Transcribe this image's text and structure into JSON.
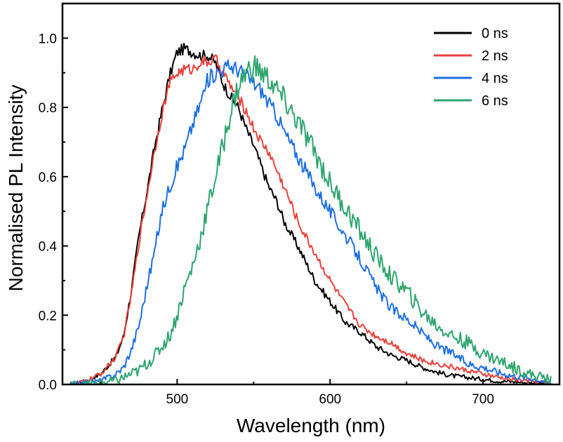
{
  "chart_data": {
    "type": "line",
    "title": "",
    "xlabel": "Wavelength (nm)",
    "ylabel": "Normalised PL Intensity",
    "xlim": [
      425,
      750
    ],
    "ylim": [
      0,
      1.1
    ],
    "xticks": [
      500,
      600,
      700
    ],
    "yticks": [
      0.0,
      0.2,
      0.4,
      0.6,
      0.8,
      1.0
    ],
    "xtick_labels": [
      "500",
      "600",
      "700"
    ],
    "ytick_labels": [
      "0.0",
      "0.2",
      "0.4",
      "0.6",
      "0.8",
      "1.0"
    ],
    "grid": false,
    "legend_position": "top-right",
    "series": [
      {
        "name": "0 ns",
        "color": "#000000",
        "x": [
          430,
          440,
          450,
          460,
          465,
          470,
          475,
          480,
          485,
          490,
          495,
          500,
          505,
          510,
          515,
          520,
          525,
          530,
          535,
          540,
          545,
          550,
          555,
          560,
          565,
          570,
          580,
          590,
          600,
          610,
          620,
          630,
          640,
          650,
          660,
          670,
          680,
          690,
          700,
          710,
          720,
          730,
          740,
          745
        ],
        "y": [
          0.0,
          0.01,
          0.03,
          0.08,
          0.14,
          0.27,
          0.43,
          0.55,
          0.68,
          0.79,
          0.89,
          0.96,
          0.97,
          0.96,
          0.95,
          0.95,
          0.93,
          0.87,
          0.83,
          0.8,
          0.74,
          0.69,
          0.63,
          0.57,
          0.53,
          0.47,
          0.39,
          0.3,
          0.24,
          0.18,
          0.15,
          0.11,
          0.085,
          0.07,
          0.05,
          0.035,
          0.025,
          0.02,
          0.015,
          0.01,
          0.008,
          0.005,
          0.003,
          0.0
        ]
      },
      {
        "name": "2 ns",
        "color": "#e8413c",
        "x": [
          430,
          440,
          450,
          460,
          465,
          470,
          475,
          480,
          485,
          490,
          495,
          500,
          505,
          510,
          515,
          520,
          525,
          530,
          535,
          540,
          545,
          550,
          555,
          560,
          565,
          570,
          580,
          590,
          600,
          610,
          620,
          630,
          640,
          650,
          660,
          670,
          680,
          690,
          700,
          710,
          720,
          730,
          740,
          745
        ],
        "y": [
          0.0,
          0.01,
          0.03,
          0.08,
          0.14,
          0.26,
          0.41,
          0.54,
          0.67,
          0.78,
          0.87,
          0.9,
          0.91,
          0.91,
          0.93,
          0.93,
          0.94,
          0.9,
          0.86,
          0.83,
          0.79,
          0.74,
          0.7,
          0.67,
          0.62,
          0.57,
          0.46,
          0.38,
          0.3,
          0.23,
          0.17,
          0.14,
          0.12,
          0.09,
          0.07,
          0.06,
          0.05,
          0.04,
          0.03,
          0.02,
          0.015,
          0.01,
          0.005,
          0.0
        ]
      },
      {
        "name": "4 ns",
        "color": "#1f6fe0",
        "x": [
          430,
          440,
          450,
          460,
          465,
          470,
          475,
          480,
          485,
          490,
          495,
          500,
          505,
          510,
          515,
          520,
          525,
          530,
          535,
          540,
          545,
          550,
          555,
          560,
          565,
          570,
          580,
          590,
          600,
          610,
          620,
          630,
          640,
          650,
          660,
          670,
          680,
          690,
          700,
          710,
          720,
          730,
          740,
          745
        ],
        "y": [
          0.0,
          0.005,
          0.01,
          0.03,
          0.05,
          0.1,
          0.17,
          0.28,
          0.38,
          0.5,
          0.57,
          0.63,
          0.68,
          0.75,
          0.81,
          0.88,
          0.9,
          0.91,
          0.92,
          0.91,
          0.89,
          0.87,
          0.85,
          0.81,
          0.78,
          0.73,
          0.65,
          0.57,
          0.5,
          0.43,
          0.36,
          0.28,
          0.22,
          0.19,
          0.15,
          0.11,
          0.09,
          0.06,
          0.05,
          0.035,
          0.025,
          0.02,
          0.01,
          0.0
        ]
      },
      {
        "name": "6 ns",
        "color": "#2fa56e",
        "x": [
          430,
          440,
          450,
          460,
          465,
          470,
          475,
          480,
          485,
          490,
          495,
          500,
          505,
          510,
          515,
          520,
          525,
          530,
          535,
          540,
          545,
          550,
          555,
          560,
          565,
          570,
          580,
          590,
          600,
          610,
          620,
          630,
          640,
          650,
          660,
          670,
          680,
          690,
          700,
          710,
          720,
          730,
          740,
          745
        ],
        "y": [
          0.0,
          0.0,
          0.005,
          0.01,
          0.02,
          0.03,
          0.04,
          0.06,
          0.08,
          0.11,
          0.14,
          0.2,
          0.28,
          0.34,
          0.42,
          0.51,
          0.6,
          0.69,
          0.79,
          0.86,
          0.9,
          0.92,
          0.9,
          0.88,
          0.85,
          0.82,
          0.75,
          0.67,
          0.58,
          0.51,
          0.44,
          0.37,
          0.31,
          0.27,
          0.21,
          0.17,
          0.14,
          0.12,
          0.09,
          0.07,
          0.05,
          0.03,
          0.02,
          0.01
        ]
      }
    ]
  }
}
